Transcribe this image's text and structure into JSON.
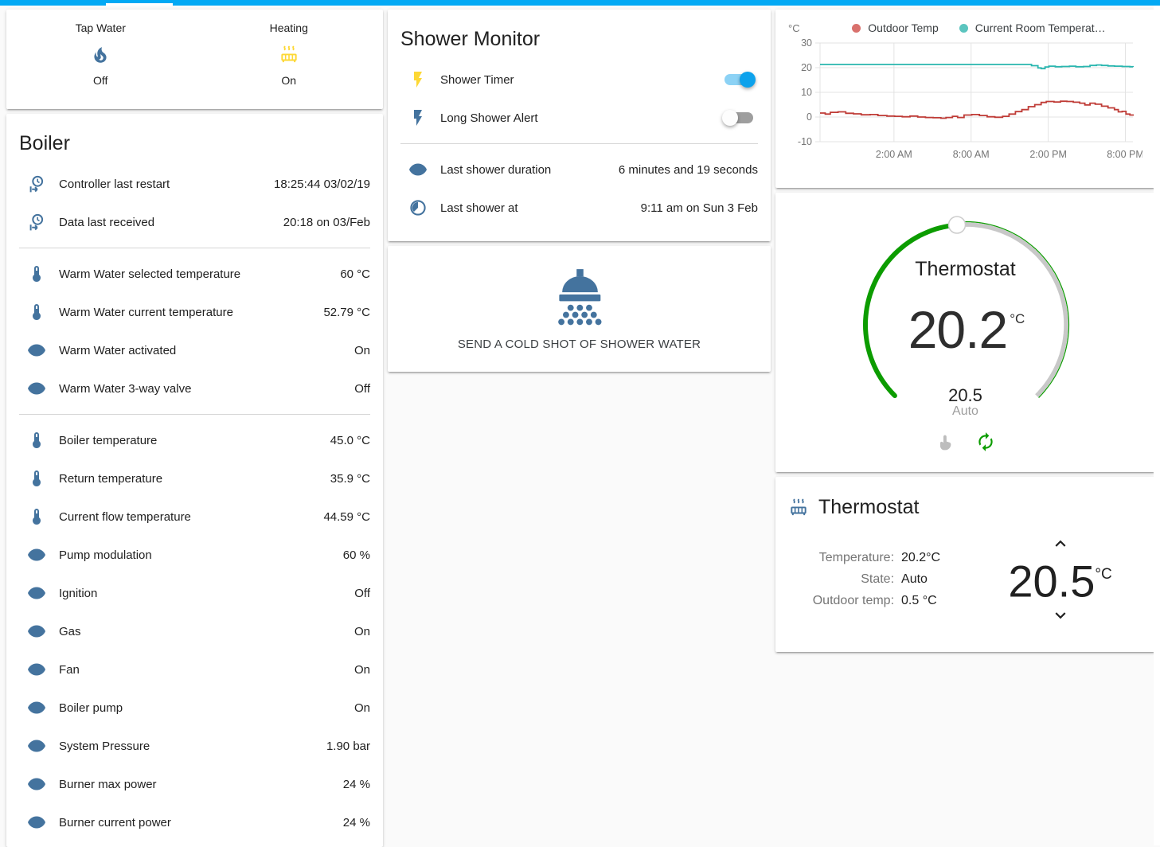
{
  "header": {
    "bar_color": "#03a9f4"
  },
  "glance_card": {
    "items": [
      {
        "label": "Tap Water",
        "icon": "fire-icon",
        "icon_color": "#44739e",
        "state": "Off"
      },
      {
        "label": "Heating",
        "icon": "radiator-icon",
        "icon_color": "#fdd835",
        "state": "On"
      }
    ]
  },
  "boiler_card": {
    "title": "Boiler",
    "sections": [
      {
        "rows": [
          {
            "icon": "clock-start-icon",
            "label": "Controller last restart",
            "value": "18:25:44 03/02/19"
          },
          {
            "icon": "clock-start-icon",
            "label": "Data last received",
            "value": "20:18 on 03/Feb"
          }
        ]
      },
      {
        "rows": [
          {
            "icon": "thermometer-icon",
            "label": "Warm Water selected temperature",
            "value": "60 °C"
          },
          {
            "icon": "thermometer-icon",
            "label": "Warm Water current temperature",
            "value": "52.79 °C"
          },
          {
            "icon": "eye-icon",
            "label": "Warm Water activated",
            "value": "On"
          },
          {
            "icon": "eye-icon",
            "label": "Warm Water 3-way valve",
            "value": "Off"
          }
        ]
      },
      {
        "rows": [
          {
            "icon": "thermometer-icon",
            "label": "Boiler temperature",
            "value": "45.0 °C"
          },
          {
            "icon": "thermometer-icon",
            "label": "Return temperature",
            "value": "35.9 °C"
          },
          {
            "icon": "thermometer-icon",
            "label": "Current flow temperature",
            "value": "44.59 °C"
          },
          {
            "icon": "eye-icon",
            "label": "Pump modulation",
            "value": "60 %"
          },
          {
            "icon": "eye-icon",
            "label": "Ignition",
            "value": "Off"
          },
          {
            "icon": "eye-icon",
            "label": "Gas",
            "value": "On"
          },
          {
            "icon": "eye-icon",
            "label": "Fan",
            "value": "On"
          },
          {
            "icon": "eye-icon",
            "label": "Boiler pump",
            "value": "On"
          },
          {
            "icon": "eye-icon",
            "label": "System Pressure",
            "value": "1.90 bar"
          },
          {
            "icon": "eye-icon",
            "label": "Burner max power",
            "value": "24 %"
          },
          {
            "icon": "eye-icon",
            "label": "Burner current power",
            "value": "24 %"
          }
        ]
      }
    ]
  },
  "shower_card": {
    "title": "Shower Monitor",
    "toggles": [
      {
        "icon": "flash-icon",
        "icon_color": "#fdd835",
        "label": "Shower Timer",
        "state": "on"
      },
      {
        "icon": "flash-icon",
        "icon_color": "#44739e",
        "label": "Long Shower Alert",
        "state": "off"
      }
    ],
    "info_rows": [
      {
        "icon": "eye-icon",
        "label": "Last shower duration",
        "value": "6 minutes and 19 seconds"
      },
      {
        "icon": "clock-icon",
        "label": "Last shower at",
        "value": "9:11 am on Sun 3 Feb"
      }
    ]
  },
  "shower_button_card": {
    "icon": "shower-head-icon",
    "icon_color": "#44739e",
    "label": "SEND A COLD SHOT OF SHOWER WATER"
  },
  "chart_data": {
    "type": "line",
    "unit_label": "°C",
    "ylim": [
      -10,
      30
    ],
    "yticks": [
      30,
      20,
      10,
      0,
      -10
    ],
    "x_span_hours": 24.4,
    "xticks": [
      {
        "t": 5.75,
        "label": "2:00 AM"
      },
      {
        "t": 11.75,
        "label": "8:00 AM"
      },
      {
        "t": 17.75,
        "label": "2:00 PM"
      },
      {
        "t": 23.75,
        "label": "8:00 PM"
      }
    ],
    "grid": true,
    "legend_position": "top",
    "series": [
      {
        "name": "Outdoor Temp",
        "line_color": "#bf3b36",
        "legend_color": "#d9716d",
        "points": [
          [
            0,
            1.6
          ],
          [
            0.4,
            1.2
          ],
          [
            0.8,
            1.9
          ],
          [
            1.4,
            2.1
          ],
          [
            2,
            1.5
          ],
          [
            2.6,
            1.3
          ],
          [
            3.2,
            0.9
          ],
          [
            3.9,
            1.0
          ],
          [
            4.5,
            0.6
          ],
          [
            5.2,
            0.4
          ],
          [
            5.8,
            0.3
          ],
          [
            6.4,
            0.1
          ],
          [
            7,
            0.4
          ],
          [
            7.6,
            0.0
          ],
          [
            8.2,
            -0.2
          ],
          [
            8.8,
            -0.3
          ],
          [
            9.4,
            -0.5
          ],
          [
            9.8,
            -0.2
          ],
          [
            10.3,
            0.3
          ],
          [
            10.7,
            -0.2
          ],
          [
            11.2,
            0.8
          ],
          [
            11.8,
            1.0
          ],
          [
            12.4,
            0.6
          ],
          [
            13,
            0.1
          ],
          [
            13.6,
            -0.1
          ],
          [
            14.2,
            0.3
          ],
          [
            14.7,
            1.2
          ],
          [
            15.2,
            2.2
          ],
          [
            15.7,
            3.0
          ],
          [
            16.2,
            4.2
          ],
          [
            16.7,
            5.0
          ],
          [
            17.2,
            5.9
          ],
          [
            17.6,
            6.3
          ],
          [
            18.2,
            6.1
          ],
          [
            18.7,
            6.4
          ],
          [
            19.2,
            6.3
          ],
          [
            19.7,
            6.0
          ],
          [
            20.2,
            5.6
          ],
          [
            20.6,
            4.9
          ],
          [
            21,
            5.6
          ],
          [
            21.4,
            5.2
          ],
          [
            21.9,
            4.4
          ],
          [
            22.4,
            3.7
          ],
          [
            22.9,
            3.0
          ],
          [
            23.2,
            2.1
          ],
          [
            23.5,
            2.3
          ],
          [
            23.8,
            1.2
          ],
          [
            24.1,
            0.8
          ],
          [
            24.35,
            0.5
          ]
        ]
      },
      {
        "name": "Current Room Temperat…",
        "line_color": "#29b6af",
        "legend_color": "#5bc5bf",
        "points": [
          [
            0,
            21.3
          ],
          [
            16.3,
            21.3
          ],
          [
            16.45,
            20.8
          ],
          [
            16.8,
            20.8
          ],
          [
            16.95,
            19.9
          ],
          [
            17.2,
            19.6
          ],
          [
            17.5,
            20.3
          ],
          [
            17.8,
            20.6
          ],
          [
            18.3,
            20.4
          ],
          [
            18.8,
            20.5
          ],
          [
            19.4,
            20.6
          ],
          [
            19.9,
            20.4
          ],
          [
            20.5,
            20.5
          ],
          [
            21,
            20.9
          ],
          [
            21.5,
            21.1
          ],
          [
            21.9,
            20.9
          ],
          [
            22.4,
            20.7
          ],
          [
            22.9,
            20.6
          ],
          [
            23.5,
            20.5
          ],
          [
            24.1,
            20.4
          ],
          [
            24.35,
            20.3
          ]
        ]
      }
    ]
  },
  "dial_card": {
    "title": "Thermostat",
    "current": "20.2",
    "current_unit": "°C",
    "target": "20.5",
    "mode": "Auto",
    "active_color": "#0c9c00",
    "inactive_color": "#c8c8c8",
    "knob_angle_deg": 265,
    "buttons": [
      {
        "icon": "hand-pointer-icon",
        "color": "#bdbdbd"
      },
      {
        "icon": "autorenew-icon",
        "color": "#0c9c00"
      }
    ]
  },
  "thermostat_card": {
    "icon": "radiator-icon",
    "icon_color": "#44739e",
    "title": "Thermostat",
    "rows": [
      {
        "label": "Temperature:",
        "value": "20.2°C"
      },
      {
        "label": "State:",
        "value": "Auto"
      },
      {
        "label": "Outdoor temp:",
        "value": "0.5 °C"
      }
    ],
    "target": "20.5",
    "target_unit": "°C"
  }
}
